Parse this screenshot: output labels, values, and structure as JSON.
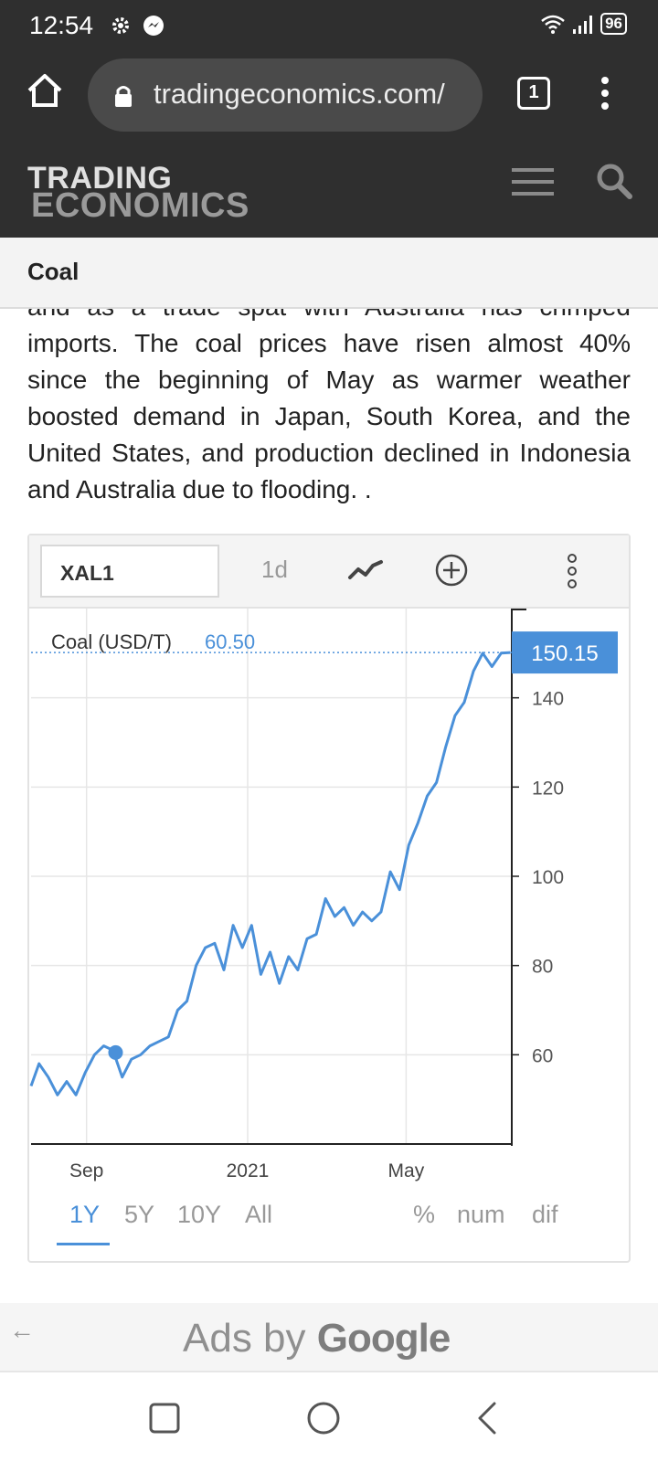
{
  "status_bar": {
    "time": "12:54",
    "battery": "96",
    "icons": [
      "gear-icon",
      "messenger-icon",
      "wifi-icon",
      "signal-icon",
      "battery-icon"
    ]
  },
  "browser": {
    "url": "tradingeconomics.com/",
    "tab_count": "1",
    "icons": [
      "home-icon",
      "lock-icon",
      "tab-switcher-icon",
      "kebab-menu-icon"
    ]
  },
  "site_header": {
    "logo_line1": "TRADING",
    "logo_line2": "ECONOMICS",
    "icons": [
      "hamburger-icon",
      "search-icon"
    ]
  },
  "page": {
    "title": "Coal"
  },
  "article": {
    "text": "and as a trade spat with Australia has crimped imports. The coal prices have risen almost 40% since the beginning of May as warmer weather boosted demand in Japan, South Korea, and the United States, and production declined in Indonesia and Australia due to flooding. ."
  },
  "chart_toolbar": {
    "symbol": "XAL1",
    "interval": "1d",
    "icons": [
      "line-chart-icon",
      "add-circle-icon",
      "vertical-dots-icon"
    ]
  },
  "chart_data": {
    "type": "line",
    "series": [
      {
        "name": "Coal (USD/T)",
        "color": "#4a90d9",
        "x": [
          "2020-07-21",
          "2020-07-27",
          "2020-08-03",
          "2020-08-10",
          "2020-08-17",
          "2020-08-24",
          "2020-08-31",
          "2020-09-07",
          "2020-09-14",
          "2020-09-21",
          "2020-09-28",
          "2020-10-05",
          "2020-10-12",
          "2020-10-19",
          "2020-10-26",
          "2020-11-02",
          "2020-11-09",
          "2020-11-16",
          "2020-11-23",
          "2020-11-30",
          "2020-12-07",
          "2020-12-14",
          "2020-12-21",
          "2020-12-28",
          "2021-01-04",
          "2021-01-11",
          "2021-01-18",
          "2021-01-25",
          "2021-02-01",
          "2021-02-08",
          "2021-02-15",
          "2021-02-22",
          "2021-03-01",
          "2021-03-08",
          "2021-03-15",
          "2021-03-22",
          "2021-03-29",
          "2021-04-05",
          "2021-04-12",
          "2021-04-19",
          "2021-04-26",
          "2021-05-03",
          "2021-05-10",
          "2021-05-17",
          "2021-05-24",
          "2021-05-31",
          "2021-06-07",
          "2021-06-14",
          "2021-06-21",
          "2021-06-28",
          "2021-07-05",
          "2021-07-12",
          "2021-07-19"
        ],
        "values": [
          53,
          58,
          55,
          51,
          54,
          51,
          56,
          60,
          62,
          61,
          55,
          59,
          60,
          62,
          63,
          64,
          70,
          72,
          80,
          84,
          85,
          79,
          89,
          84,
          89,
          78,
          83,
          76,
          82,
          79,
          86,
          87,
          95,
          91,
          93,
          89,
          92,
          90,
          92,
          101,
          97,
          107,
          112,
          118,
          121,
          129,
          136,
          139,
          146,
          150,
          147,
          150,
          150.15
        ]
      }
    ],
    "highlight_point": {
      "x": "2020-09-23",
      "y": 60.5
    },
    "hover_readout": {
      "label": "Coal (USD/T)",
      "value": "60.50"
    },
    "last_value": "150.15",
    "x_ticks": [
      {
        "label": "Sep",
        "x": "2020-09-01"
      },
      {
        "label": "2021",
        "x": "2021-01-01"
      },
      {
        "label": "May",
        "x": "2021-05-01"
      }
    ],
    "y_ticks": [
      60,
      80,
      100,
      120,
      140
    ],
    "x_range": [
      "2020-07-21",
      "2021-07-20"
    ],
    "ylim": [
      40,
      160
    ],
    "grid": true,
    "y_axis_side": "right",
    "xlabel": "",
    "ylabel": ""
  },
  "range_options": {
    "items": [
      "1Y",
      "5Y",
      "10Y",
      "All"
    ],
    "selected": "1Y",
    "modes": [
      "%",
      "num",
      "dif"
    ]
  },
  "ads": {
    "prefix": "Ads by",
    "brand": "Google",
    "icons": [
      "back-arrow-icon"
    ]
  },
  "nav_bar": {
    "icons": [
      "recent-apps-icon",
      "home-circle-icon",
      "back-icon"
    ]
  }
}
